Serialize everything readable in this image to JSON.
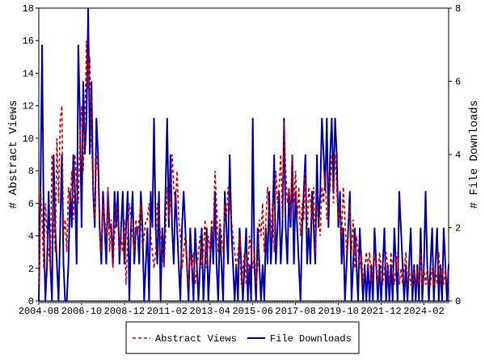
{
  "chart_data": {
    "type": "line",
    "categories": [
      "2004-08",
      null,
      null,
      null,
      null,
      null,
      null,
      null,
      null,
      null,
      null,
      null,
      null,
      null,
      null,
      null,
      null,
      null,
      null,
      null,
      null,
      null,
      null,
      null,
      null,
      null,
      "2006-10",
      null,
      null,
      null,
      null,
      null,
      null,
      null,
      null,
      null,
      null,
      null,
      null,
      null,
      null,
      null,
      null,
      null,
      null,
      null,
      null,
      null,
      null,
      null,
      null,
      null,
      "2008-12",
      null,
      null,
      null,
      null,
      null,
      null,
      null,
      null,
      null,
      null,
      null,
      null,
      null,
      null,
      null,
      null,
      null,
      null,
      null,
      null,
      null,
      null,
      null,
      null,
      null,
      "2011-02",
      null,
      null,
      null,
      null,
      null,
      null,
      null,
      null,
      null,
      null,
      null,
      null,
      null,
      null,
      null,
      null,
      null,
      null,
      null,
      null,
      null,
      null,
      null,
      null,
      null,
      "2013-04",
      null,
      null,
      null,
      null,
      null,
      null,
      null,
      null,
      null,
      null,
      null,
      null,
      null,
      null,
      null,
      null,
      null,
      null,
      null,
      null,
      null,
      null,
      null,
      null,
      null,
      "2015-06",
      null,
      null,
      null,
      null,
      null,
      null,
      null,
      null,
      null,
      null,
      null,
      null,
      null,
      null,
      null,
      null,
      null,
      null,
      null,
      null,
      null,
      null,
      null,
      null,
      null,
      "2017-08",
      null,
      null,
      null,
      null,
      null,
      null,
      null,
      null,
      null,
      null,
      null,
      null,
      null,
      null,
      null,
      null,
      null,
      null,
      null,
      null,
      null,
      null,
      null,
      null,
      null,
      "2019-10",
      null,
      null,
      null,
      null,
      null,
      null,
      null,
      null,
      null,
      null,
      null,
      null,
      null,
      null,
      null,
      null,
      null,
      null,
      null,
      null,
      null,
      null,
      null,
      null,
      null,
      "2021-12",
      null,
      null,
      null,
      null,
      null,
      null,
      null,
      null,
      null,
      null,
      null,
      null,
      null,
      null,
      null,
      null,
      null,
      null,
      null,
      null,
      null,
      null,
      null,
      null,
      null,
      "2024-02",
      null,
      null,
      null,
      null,
      null,
      null,
      null,
      null,
      null,
      null,
      null,
      null,
      null,
      null,
      null
    ],
    "ylabel": "# Abstract Views",
    "y2label": "# File Downloads",
    "ylim": [
      0,
      18
    ],
    "yticks": [
      0,
      2,
      4,
      6,
      8,
      10,
      12,
      14,
      16,
      18
    ],
    "y2lim": [
      0,
      8
    ],
    "y2ticks": [
      0,
      2,
      4,
      6,
      8
    ],
    "series": [
      {
        "name": "Abstract Views",
        "color": "#cc0000",
        "values": [
          1,
          7,
          5,
          2,
          6,
          4,
          3,
          2,
          9,
          5,
          3,
          10,
          6,
          11,
          12,
          4,
          5,
          3,
          7,
          6,
          8,
          5,
          9,
          7,
          6,
          10,
          12,
          8,
          11,
          16,
          13,
          15,
          10,
          7,
          5,
          9,
          8,
          4,
          3,
          6,
          5,
          4,
          7,
          3,
          5,
          2,
          4,
          6,
          5,
          3,
          4,
          3,
          5,
          1,
          4,
          6,
          5,
          4,
          3,
          5,
          4,
          5,
          6,
          3,
          4,
          5,
          5,
          6,
          4,
          3,
          2,
          3,
          6,
          5,
          4,
          3,
          2,
          4,
          7,
          5,
          6,
          9,
          7,
          6,
          8,
          5,
          4,
          2,
          3,
          4,
          2,
          1,
          3,
          2,
          3,
          1,
          2,
          3,
          4,
          2,
          3,
          5,
          2,
          4,
          3,
          5,
          4,
          8,
          6,
          3,
          5,
          4,
          3,
          6,
          5,
          7,
          6,
          5,
          4,
          3,
          2,
          3,
          4,
          1,
          2,
          3,
          1,
          2,
          4,
          3,
          2,
          3,
          1,
          2,
          5,
          4,
          6,
          3,
          5,
          7,
          5,
          4,
          6,
          3,
          8,
          6,
          7,
          9,
          5,
          11,
          8,
          6,
          7,
          5,
          9,
          6,
          8,
          5,
          7,
          4,
          6,
          5,
          8,
          4,
          7,
          6,
          5,
          7,
          3,
          6,
          5,
          4,
          7,
          6,
          8,
          5,
          6,
          7,
          9,
          6,
          9,
          7,
          5,
          6,
          4,
          7,
          5,
          3,
          4,
          6,
          3,
          5,
          2,
          4,
          3,
          2,
          3,
          1,
          2,
          3,
          2,
          3,
          1,
          2,
          3,
          2,
          1,
          3,
          2,
          1,
          2,
          3,
          2,
          1,
          3,
          2,
          1,
          2,
          3,
          1,
          2,
          1,
          2,
          3,
          1,
          2,
          1,
          1,
          2,
          1,
          2,
          1,
          3,
          1,
          2,
          1,
          2,
          1,
          1,
          2,
          1,
          2,
          1,
          3,
          1,
          2,
          1,
          2,
          1,
          1
        ]
      },
      {
        "name": "File Downloads",
        "color": "#0000aa",
        "axis": "y2",
        "values": [
          0,
          3,
          7,
          2,
          0,
          1,
          3,
          1,
          0,
          4,
          2,
          1,
          0,
          2,
          4,
          1,
          0,
          0,
          1,
          3,
          2,
          4,
          3,
          1,
          7,
          5,
          2,
          6,
          4,
          5,
          8,
          4,
          6,
          3,
          2,
          5,
          4,
          2,
          1,
          3,
          2,
          1,
          3,
          2,
          2,
          1,
          3,
          2,
          3,
          1,
          2,
          3,
          1,
          2,
          3,
          0,
          2,
          3,
          1,
          2,
          2,
          1,
          3,
          2,
          0,
          1,
          2,
          0,
          3,
          2,
          5,
          2,
          1,
          3,
          0,
          2,
          1,
          3,
          5,
          2,
          4,
          2,
          1,
          3,
          2,
          1,
          0,
          2,
          3,
          2,
          1,
          0,
          2,
          1,
          0,
          2,
          1,
          0,
          1,
          2,
          0,
          1,
          2,
          0,
          1,
          2,
          1,
          3,
          1,
          0,
          2,
          1,
          0,
          3,
          2,
          1,
          4,
          2,
          1,
          0,
          1,
          0,
          2,
          1,
          0,
          1,
          2,
          0,
          1,
          0,
          5,
          1,
          0,
          2,
          1,
          0,
          1,
          0,
          2,
          1,
          3,
          1,
          2,
          4,
          1,
          2,
          3,
          1,
          2,
          5,
          2,
          1,
          3,
          2,
          4,
          1,
          3,
          2,
          1,
          0,
          2,
          3,
          4,
          1,
          2,
          1,
          3,
          2,
          1,
          4,
          2,
          3,
          5,
          4,
          3,
          5,
          2,
          4,
          5,
          3,
          5,
          4,
          2,
          3,
          1,
          2,
          0,
          1,
          2,
          3,
          0,
          1,
          2,
          1,
          0,
          2,
          1,
          0,
          1,
          0,
          1,
          0,
          1,
          0,
          2,
          1,
          0,
          1,
          0,
          1,
          2,
          0,
          1,
          0,
          1,
          0,
          2,
          1,
          0,
          3,
          2,
          1,
          0,
          1,
          0,
          1,
          2,
          0,
          1,
          0,
          1,
          0,
          2,
          0,
          1,
          3,
          1,
          0,
          1,
          2,
          0,
          1,
          2,
          0,
          1,
          0,
          2,
          1,
          0,
          1
        ]
      }
    ]
  }
}
